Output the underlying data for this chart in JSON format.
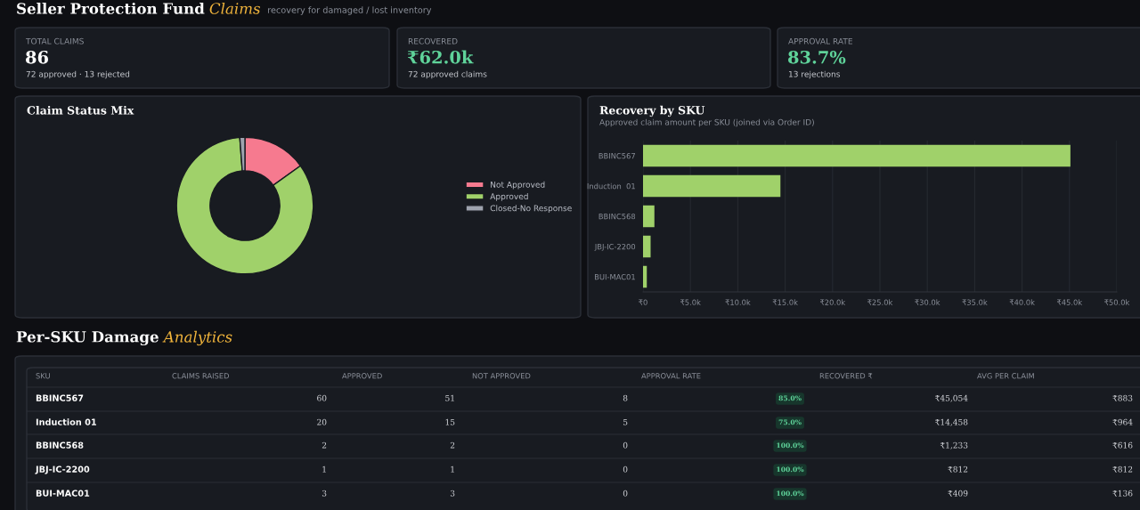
{
  "chart_data": [
    {
      "type": "other",
      "title": "Seller Protection Fund Claims",
      "subtitle": "recovery for damaged / lost inventory"
    },
    {
      "type": "other",
      "title": "TOTAL CLAIMS",
      "annotations": [
        "86",
        "72 approved · 13 rejected"
      ],
      "color": "#ffffff"
    },
    {
      "type": "other",
      "title": "RECOVERED",
      "annotations": [
        "₹62.0k",
        "72 approved claims"
      ],
      "color": "#5fd39a"
    },
    {
      "type": "other",
      "title": "APPROVAL RATE",
      "annotations": [
        "83.7%",
        "13 rejections"
      ],
      "color": "#5fd39a"
    },
    {
      "type": "donut",
      "title": "Claim Status Mix",
      "categories": [
        "Not Approved",
        "Approved",
        "Closed-No Response"
      ],
      "values": [
        15.1,
        83.7,
        1.2
      ],
      "colors": [
        "#f67a8f",
        "#a0d16a",
        "#9ea3ae"
      ],
      "legend": "right"
    },
    {
      "type": "bar",
      "title": "Recovery by SKU",
      "subtitle": "Approved claim amount per SKU (joined via Order ID)",
      "orientation": "horizontal",
      "categories": [
        "BBINC567",
        "Induction  01",
        "BBINC568",
        "JBJ-IC-2200",
        "BUI-MAC01"
      ],
      "values": [
        45100,
        14500,
        1200,
        800,
        400
      ],
      "color": "#a0d16a",
      "xlim": [
        0,
        50000
      ],
      "xticks": [
        {
          "value": 0,
          "label": "₹0"
        },
        {
          "value": 5000,
          "label": "₹5.0k"
        },
        {
          "value": 10000,
          "label": "₹10.0k"
        },
        {
          "value": 15000,
          "label": "₹15.0k"
        },
        {
          "value": 20000,
          "label": "₹20.0k"
        },
        {
          "value": 25000,
          "label": "₹25.0k"
        },
        {
          "value": 30000,
          "label": "₹30.0k"
        },
        {
          "value": 35000,
          "label": "₹35.0k"
        },
        {
          "value": 40000,
          "label": "₹40.0k"
        },
        {
          "value": 45000,
          "label": "₹45.0k"
        },
        {
          "value": 50000,
          "label": "₹50.0k"
        }
      ],
      "grid": "x"
    },
    {
      "type": "other",
      "title": "Per-SKU Damage Analytics",
      "ylabel": "SKU",
      "categories": [
        "CLAIMS RAISED",
        "APPROVED",
        "NOT APPROVED",
        "APPROVAL RATE",
        "RECOVERED ₹",
        "AVG PER CLAIM"
      ],
      "y_categories": [
        "BBINC567",
        "Induction 01",
        "BBINC568",
        "JBJ-IC-2200",
        "BUI-MAC01"
      ],
      "cell_labels": [
        [
          "60",
          "51",
          "8",
          "85.0%",
          "₹45,054",
          "₹883"
        ],
        [
          "20",
          "15",
          "5",
          "75.0%",
          "₹14,458",
          "₹964"
        ],
        [
          "2",
          "2",
          "0",
          "100.0%",
          "₹1,233",
          "₹616"
        ],
        [
          "1",
          "1",
          "0",
          "100.0%",
          "₹812",
          "₹812"
        ],
        [
          "3",
          "3",
          "0",
          "100.0%",
          "₹409",
          "₹136"
        ]
      ]
    }
  ]
}
